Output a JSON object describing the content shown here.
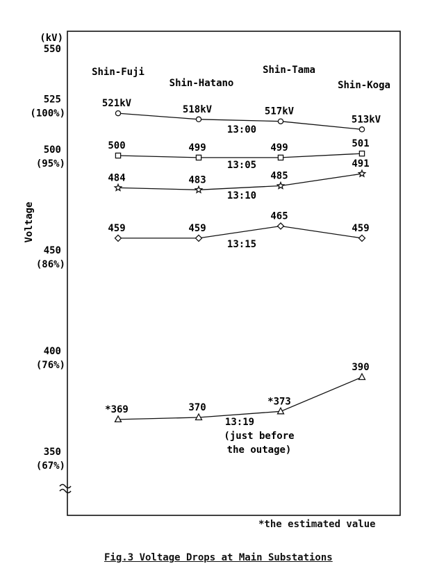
{
  "chart_data": {
    "type": "line",
    "categories": [
      "Shin-Fuji",
      "Shin-Hatano",
      "Shin-Tama",
      "Shin-Koga"
    ],
    "ylabel": "Voltage",
    "y_unit": "(kV)",
    "ylim": [
      335,
      560
    ],
    "yticks": [
      {
        "value": 550,
        "label": "550",
        "sub": ""
      },
      {
        "value": 525,
        "label": "525",
        "sub": "(100%)"
      },
      {
        "value": 500,
        "label": "500",
        "sub": "(95%)"
      },
      {
        "value": 450,
        "label": "450",
        "sub": "(86%)"
      },
      {
        "value": 400,
        "label": "400",
        "sub": "(76%)"
      },
      {
        "value": 350,
        "label": "350",
        "sub": "(67%)"
      }
    ],
    "axis_break": true,
    "series": [
      {
        "time": "13:00",
        "marker": "circle",
        "values": [
          521,
          518,
          517,
          513
        ],
        "labels": [
          "521kV",
          "518kV",
          "517kV",
          "513kV"
        ]
      },
      {
        "time": "13:05",
        "marker": "square",
        "values": [
          500,
          499,
          499,
          501
        ],
        "labels": [
          "500",
          "499",
          "499",
          "501"
        ]
      },
      {
        "time": "13:10",
        "marker": "star",
        "values": [
          484,
          483,
          485,
          491
        ],
        "labels": [
          "484",
          "483",
          "485",
          "491"
        ]
      },
      {
        "time": "13:15",
        "marker": "diamond",
        "values": [
          459,
          459,
          465,
          459
        ],
        "labels": [
          "459",
          "459",
          "465",
          "459"
        ]
      },
      {
        "time": "13:19",
        "time_note": [
          "(just before",
          "the outage)"
        ],
        "marker": "triangle",
        "values": [
          369,
          370,
          373,
          390
        ],
        "labels": [
          "*369",
          "370",
          "*373",
          "390"
        ]
      }
    ],
    "footnote": "*the estimated value",
    "title": "Fig.3 Voltage Drops at Main Substations"
  }
}
